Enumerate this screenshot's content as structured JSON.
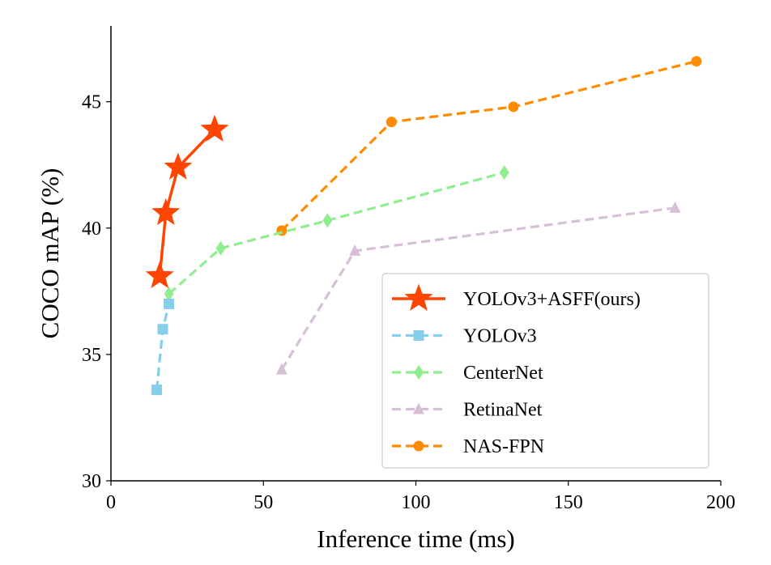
{
  "chart_data": {
    "type": "line",
    "title": "",
    "xlabel": "Inference time (ms)",
    "ylabel": "COCO mAP (%)",
    "xlim": [
      0,
      200
    ],
    "ylim": [
      30,
      48
    ],
    "xticks": [
      0,
      50,
      100,
      150,
      200
    ],
    "yticks": [
      30,
      35,
      40,
      45
    ],
    "grid": false,
    "legend_position": "lower-right",
    "series": [
      {
        "name": "YOLOv3+ASFF(ours)",
        "color": "#ff4500",
        "marker": "star",
        "dash": "solid",
        "x": [
          16,
          18,
          22,
          34
        ],
        "y": [
          38.1,
          40.6,
          42.4,
          43.9
        ]
      },
      {
        "name": "YOLOv3",
        "color": "#87ceeb",
        "marker": "square",
        "dash": "dashed",
        "x": [
          15,
          17,
          19
        ],
        "y": [
          33.6,
          36.0,
          37.0
        ]
      },
      {
        "name": "CenterNet",
        "color": "#90ee90",
        "marker": "diamond",
        "dash": "dashed",
        "x": [
          19,
          36,
          71,
          129
        ],
        "y": [
          37.4,
          39.2,
          40.3,
          42.2
        ]
      },
      {
        "name": "RetinaNet",
        "color": "#d8bfd8",
        "marker": "triangle",
        "dash": "dashed",
        "x": [
          56,
          80,
          185
        ],
        "y": [
          34.4,
          39.1,
          40.8
        ]
      },
      {
        "name": "NAS-FPN",
        "color": "#ff8c00",
        "marker": "circle",
        "dash": "dashed",
        "x": [
          56,
          92,
          132,
          192
        ],
        "y": [
          39.9,
          44.2,
          44.8,
          46.6
        ]
      }
    ]
  }
}
